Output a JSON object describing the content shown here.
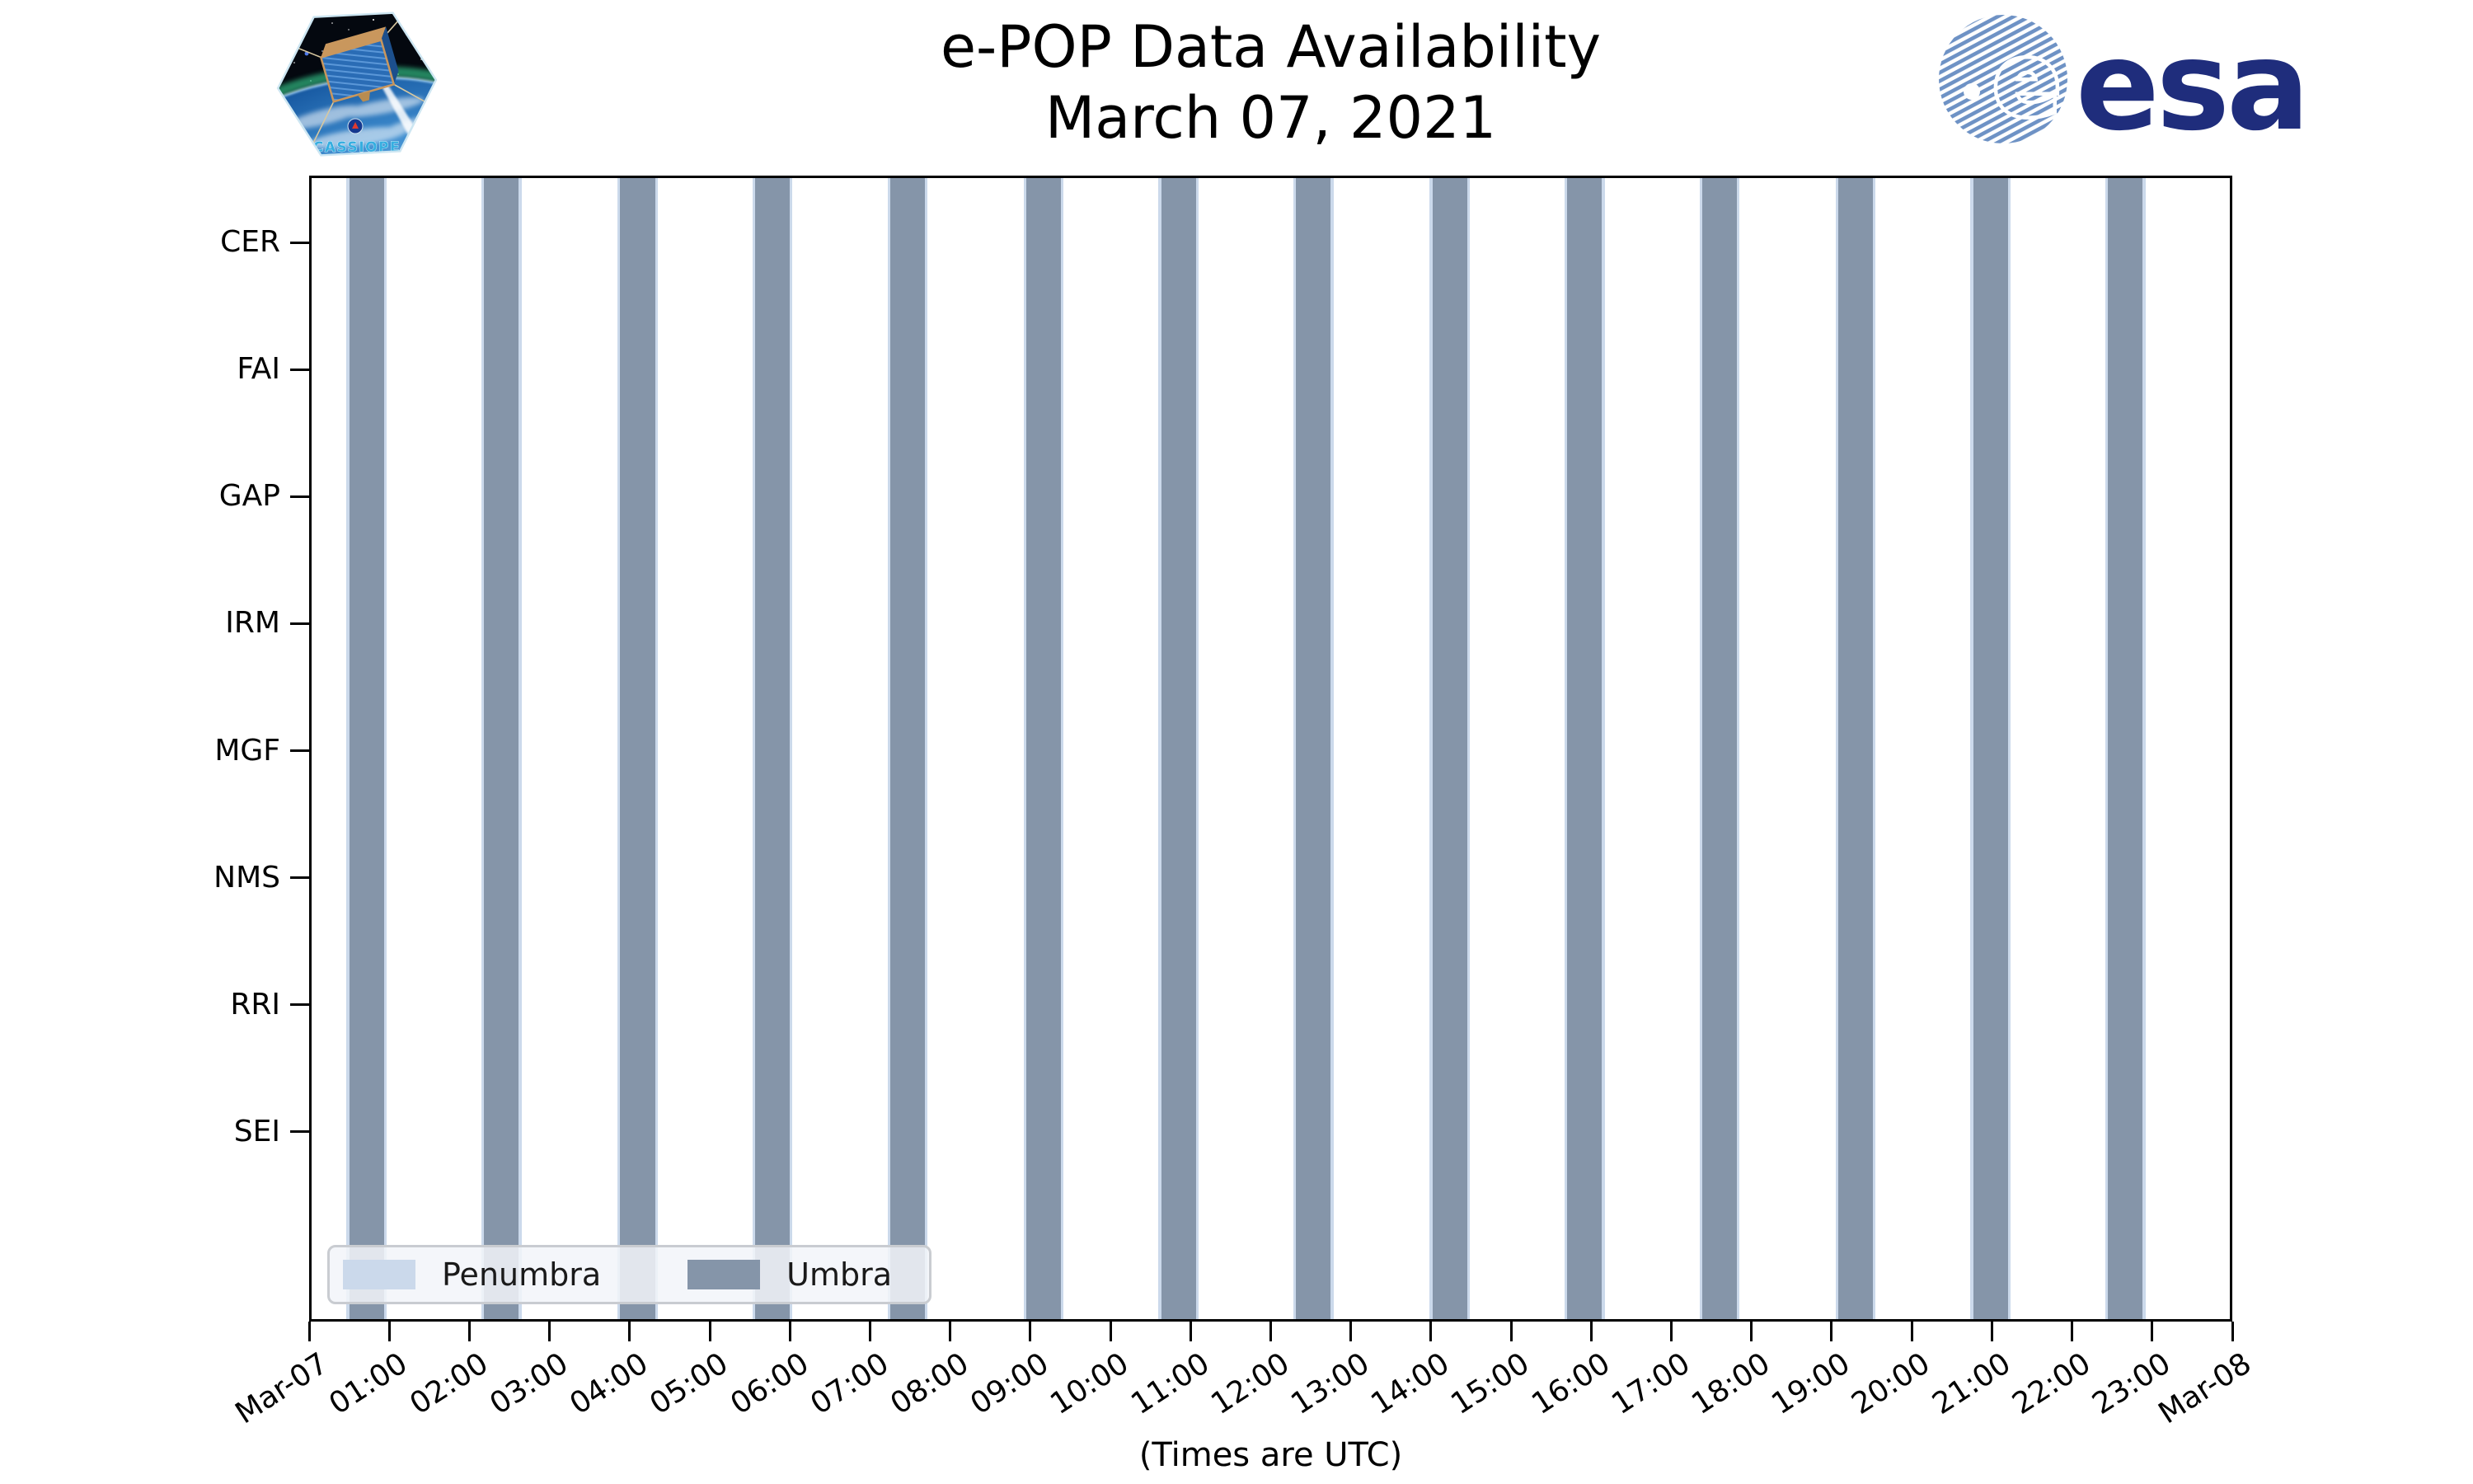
{
  "title": {
    "line1": "e-POP Data Availability",
    "line2": "March 07, 2021"
  },
  "logos": {
    "cassiope_patch_text": "CASSIOPE",
    "esa_text": "esa"
  },
  "chart_data": {
    "type": "timeline-availability-bars",
    "title": "e-POP Data Availability",
    "subtitle": "March 07, 2021",
    "xlabel": "(Times are UTC)",
    "x_axis": {
      "range_hours": [
        0,
        24
      ],
      "tick_labels": [
        "Mar-07",
        "01:00",
        "02:00",
        "03:00",
        "04:00",
        "05:00",
        "06:00",
        "07:00",
        "08:00",
        "09:00",
        "10:00",
        "11:00",
        "12:00",
        "13:00",
        "14:00",
        "15:00",
        "16:00",
        "17:00",
        "18:00",
        "19:00",
        "20:00",
        "21:00",
        "22:00",
        "23:00",
        "Mar-08"
      ],
      "tick_rotation_deg": 33
    },
    "instruments": [
      "CER",
      "FAI",
      "GAP",
      "IRM",
      "MGF",
      "NMS",
      "RRI",
      "SEI"
    ],
    "legend": {
      "position": "lower-left",
      "entries": [
        {
          "label": "Penumbra",
          "color": "#CBD9EB"
        },
        {
          "label": "Umbra",
          "color": "#8595A9"
        }
      ]
    },
    "eclipse_intervals": [
      {
        "umbra_start": "00:30",
        "umbra_end": "00:56"
      },
      {
        "umbra_start": "02:11",
        "umbra_end": "02:37"
      },
      {
        "umbra_start": "03:53",
        "umbra_end": "04:19"
      },
      {
        "umbra_start": "05:34",
        "umbra_end": "06:00"
      },
      {
        "umbra_start": "07:15",
        "umbra_end": "07:41"
      },
      {
        "umbra_start": "08:57",
        "umbra_end": "09:23"
      },
      {
        "umbra_start": "10:38",
        "umbra_end": "11:04"
      },
      {
        "umbra_start": "12:19",
        "umbra_end": "12:45"
      },
      {
        "umbra_start": "14:01",
        "umbra_end": "14:27"
      },
      {
        "umbra_start": "15:42",
        "umbra_end": "16:08"
      },
      {
        "umbra_start": "17:23",
        "umbra_end": "17:49"
      },
      {
        "umbra_start": "19:05",
        "umbra_end": "19:31"
      },
      {
        "umbra_start": "20:46",
        "umbra_end": "21:12"
      },
      {
        "umbra_start": "22:27",
        "umbra_end": "22:53"
      }
    ],
    "penumbra_minutes_each_side": 2,
    "grid": false,
    "plot_background": "#ffffff",
    "colors": {
      "umbra": "#8595A9",
      "penumbra": "#CBD9EB",
      "axis": "#000000",
      "esa_navy": "#1F2D7C",
      "esa_stripe_blue": "#6E92C5"
    }
  }
}
